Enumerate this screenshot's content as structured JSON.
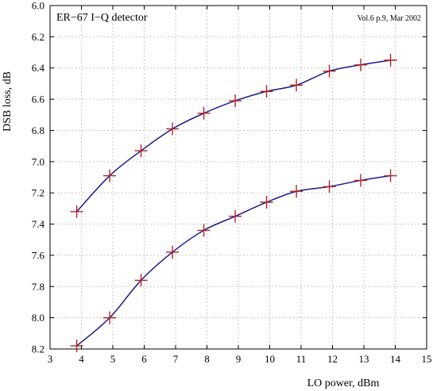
{
  "chart_data": {
    "type": "line",
    "title": "ER−67 I−Q detector",
    "note": "Vol.6 p.9, Mar 2002",
    "xlabel": "LO power, dBm",
    "ylabel": "DSB loss, dB",
    "xlim": [
      3,
      15
    ],
    "ylim": [
      6.0,
      8.2
    ],
    "y_inverted": true,
    "grid": true,
    "x_ticks": [
      "3",
      "4",
      "5",
      "6",
      "7",
      "8",
      "9",
      "10",
      "11",
      "12",
      "13",
      "14",
      "15"
    ],
    "y_ticks": [
      "6.0",
      "6.2",
      "6.4",
      "6.6",
      "6.8",
      "7.0",
      "7.2",
      "7.4",
      "7.6",
      "7.8",
      "8.0",
      "8.2"
    ],
    "colors": {
      "curve": "#1a1a8c",
      "marker": "#b22222",
      "grid": "#b8b8b8"
    },
    "series": [
      {
        "x": [
          3.85,
          4.9,
          5.9,
          6.9,
          7.9,
          8.9,
          9.9,
          10.85,
          11.9,
          12.9,
          13.85
        ],
        "y": [
          7.32,
          7.09,
          6.93,
          6.79,
          6.69,
          6.61,
          6.55,
          6.51,
          6.42,
          6.38,
          6.35
        ]
      },
      {
        "x": [
          3.85,
          4.9,
          5.9,
          6.9,
          7.9,
          8.9,
          9.9,
          10.85,
          11.9,
          12.9,
          13.85
        ],
        "y": [
          8.18,
          8.0,
          7.76,
          7.58,
          7.44,
          7.35,
          7.26,
          7.19,
          7.16,
          7.12,
          7.09
        ]
      }
    ]
  }
}
